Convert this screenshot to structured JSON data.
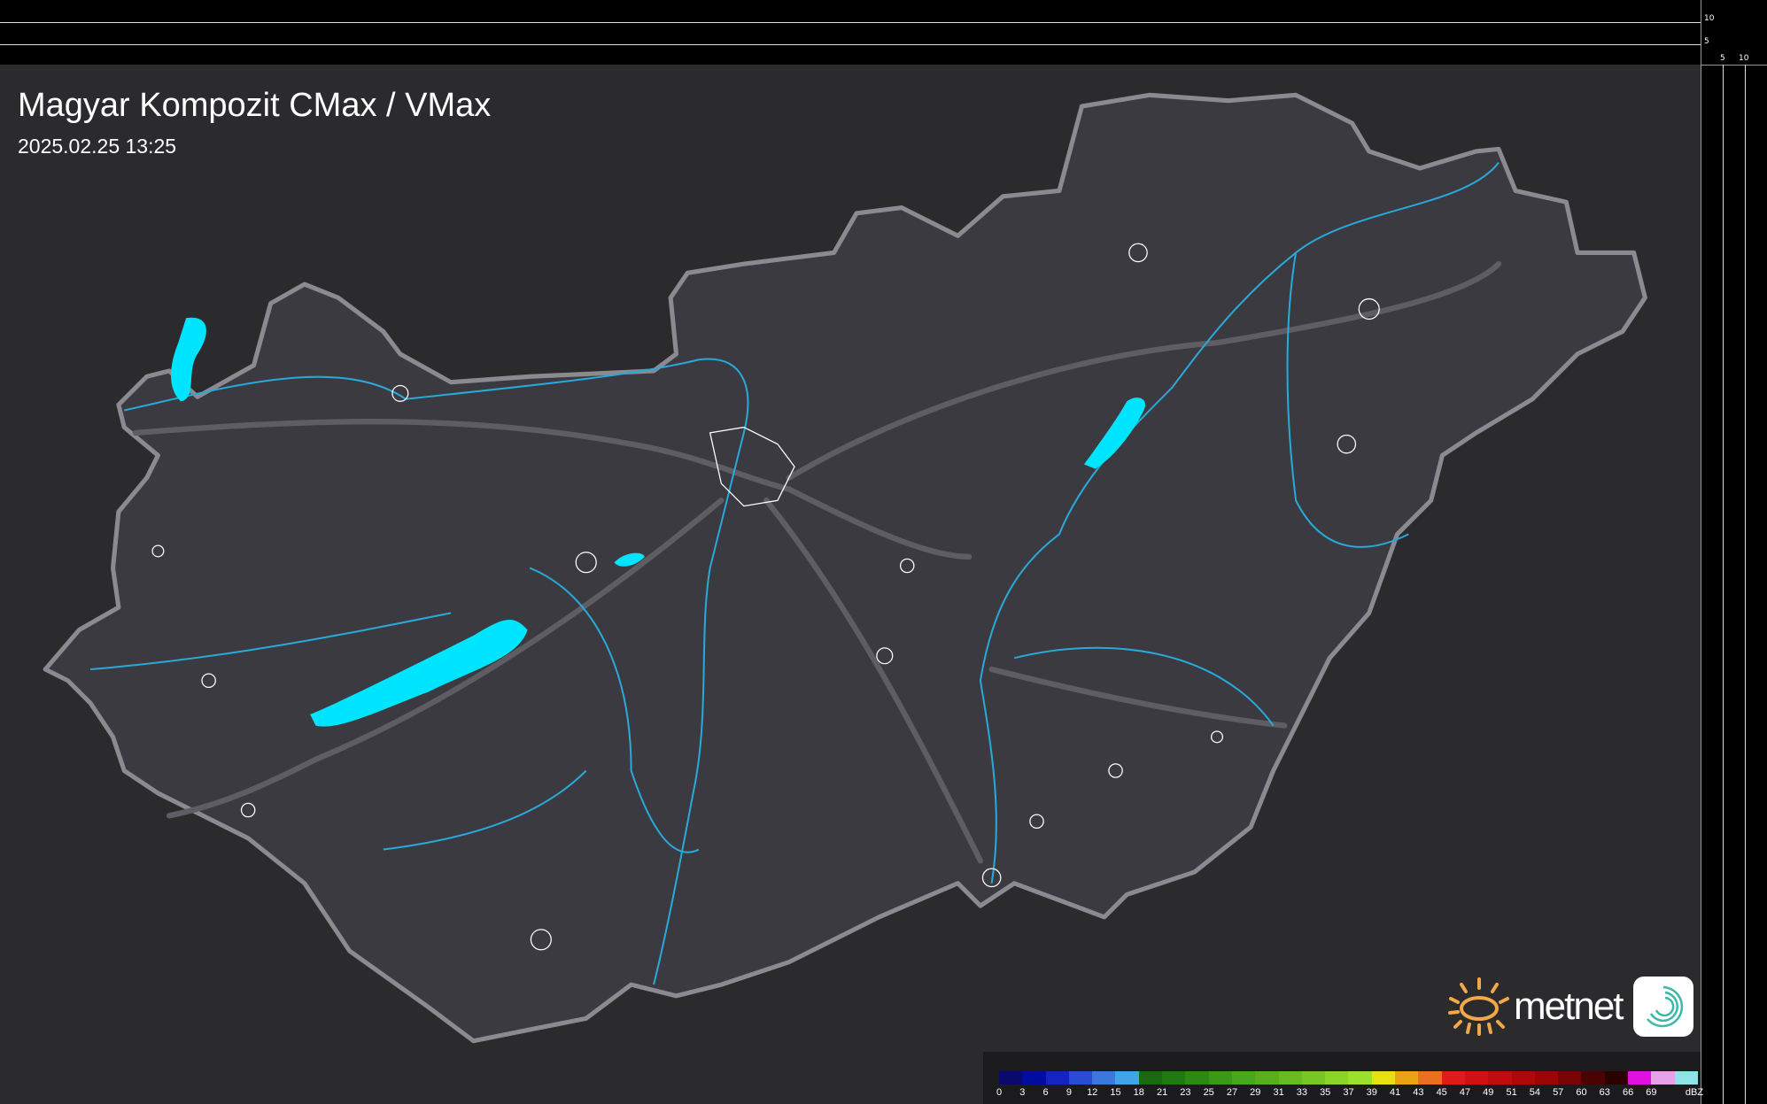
{
  "title": "Magyar Kompozit CMax / VMax",
  "timestamp": "2025.02.25 13:25",
  "side_profile": {
    "top_ticks": [
      "10",
      "5"
    ],
    "right_ticks": [
      "5",
      "10"
    ]
  },
  "legend": {
    "unit": "dBZ",
    "labels": [
      "0",
      "3",
      "6",
      "9",
      "12",
      "15",
      "18",
      "21",
      "23",
      "25",
      "27",
      "29",
      "31",
      "33",
      "35",
      "37",
      "39",
      "41",
      "43",
      "45",
      "47",
      "49",
      "51",
      "54",
      "57",
      "60",
      "63",
      "66",
      "69"
    ],
    "colors": [
      "#0a0a6a",
      "#000ca0",
      "#1424c0",
      "#2a4cd4",
      "#3a78dc",
      "#40a4e6",
      "#176a0e",
      "#1f7a10",
      "#2a8a14",
      "#389a18",
      "#46a81c",
      "#56b01e",
      "#66ba22",
      "#78c626",
      "#8ad42a",
      "#9ae02c",
      "#e8e012",
      "#e8a412",
      "#e87020",
      "#e21a1a",
      "#d21212",
      "#c00c0c",
      "#ae0808",
      "#9a0606",
      "#760404",
      "#4a0202",
      "#2a0000",
      "#e010e0",
      "#e8a0e8",
      "#90e4e8"
    ]
  },
  "branding": {
    "logo_text": "metnet",
    "sun_color": "#f0a848",
    "app_icon_color": "#3bb8a8"
  },
  "colors": {
    "background": "#2b2b2e",
    "country_fill": "#3a3a40",
    "border": "#8a8a90",
    "rivers": "#2aa8d8",
    "lakes": "#00e5ff"
  }
}
